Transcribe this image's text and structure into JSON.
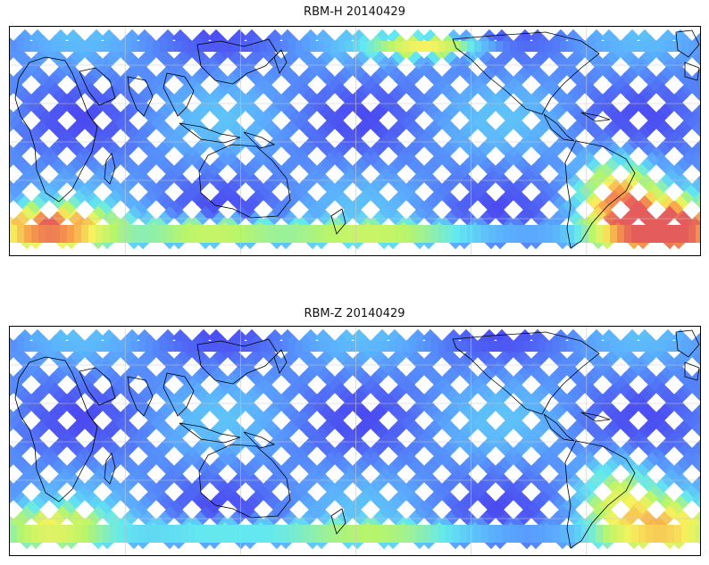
{
  "panels": [
    {
      "title": "RBM-H 20140429",
      "colormap": [
        "#4b4bf0",
        "#5aa6ff",
        "#63e8f0",
        "#b8f56a",
        "#f6f25e",
        "#f9a34b",
        "#e45c5c"
      ],
      "intensity_regions": [
        {
          "region": "south-atlantic",
          "level": 0.95
        },
        {
          "region": "south-indian-ocean",
          "level": 0.8
        },
        {
          "region": "pacific-high-latitude",
          "level": 0.35
        },
        {
          "region": "north-pacific-band",
          "level": 0.55
        }
      ]
    },
    {
      "title": "RBM-Z 20140429",
      "colormap": [
        "#4b4bf0",
        "#5aa6ff",
        "#63e8f0",
        "#b8f56a",
        "#f6f25e",
        "#f9a34b",
        "#e45c5c"
      ],
      "intensity_regions": [
        {
          "region": "south-atlantic",
          "level": 0.55
        },
        {
          "region": "south-indian-ocean",
          "level": 0.45
        },
        {
          "region": "pacific-high-latitude",
          "level": 0.3
        }
      ]
    }
  ],
  "graticule": {
    "lon_lines": 6,
    "lat_lines": 5
  },
  "track_color": "#5b6ef5"
}
